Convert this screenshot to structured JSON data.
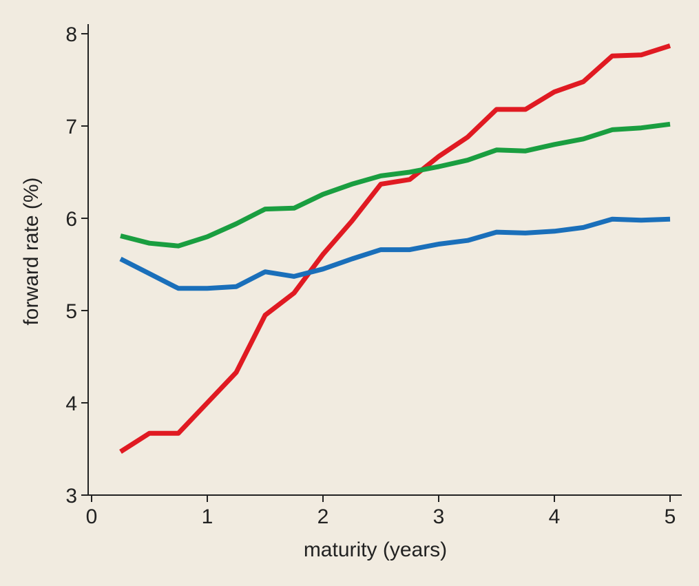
{
  "chart_data": {
    "type": "line",
    "xlabel": "maturity (years)",
    "ylabel": "forward rate (%)",
    "xlim": [
      0,
      5
    ],
    "ylim": [
      3,
      8
    ],
    "xticks": [
      "0",
      "1",
      "2",
      "3",
      "4",
      "5"
    ],
    "yticks": [
      "3",
      "4",
      "5",
      "6",
      "7",
      "8"
    ],
    "grid": false,
    "legend": "none",
    "x": [
      0.25,
      0.5,
      0.75,
      1.0,
      1.25,
      1.5,
      1.75,
      2.0,
      2.25,
      2.5,
      2.75,
      3.0,
      3.25,
      3.5,
      3.75,
      4.0,
      4.25,
      4.5,
      4.75,
      5.0
    ],
    "series": [
      {
        "color": "#e01a22",
        "values": [
          3.47,
          3.67,
          3.67,
          4.0,
          4.33,
          4.95,
          5.19,
          5.61,
          5.97,
          6.37,
          6.42,
          6.67,
          6.88,
          7.18,
          7.18,
          7.37,
          7.48,
          7.76,
          7.77,
          7.87
        ]
      },
      {
        "color": "#1a9e40",
        "values": [
          5.81,
          5.73,
          5.7,
          5.8,
          5.94,
          6.1,
          6.11,
          6.26,
          6.37,
          6.46,
          6.5,
          6.56,
          6.63,
          6.74,
          6.73,
          6.8,
          6.86,
          6.96,
          6.98,
          7.02
        ]
      },
      {
        "color": "#1a6fba",
        "values": [
          5.56,
          5.4,
          5.24,
          5.24,
          5.26,
          5.42,
          5.37,
          5.45,
          5.56,
          5.66,
          5.66,
          5.72,
          5.76,
          5.85,
          5.84,
          5.86,
          5.9,
          5.99,
          5.98,
          5.99
        ]
      }
    ]
  }
}
